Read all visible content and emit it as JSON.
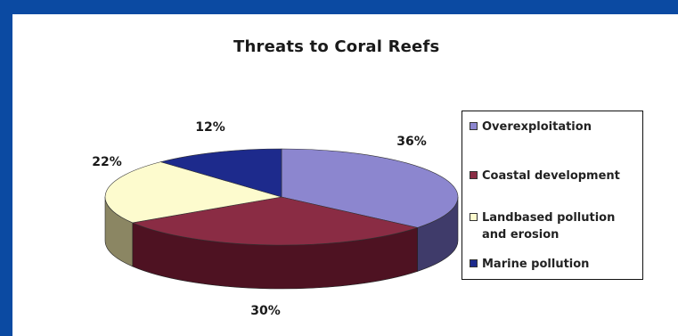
{
  "chart_data": {
    "type": "pie",
    "title": "Threats to Coral Reefs",
    "slices": [
      {
        "label": "Overexploitation",
        "value": 36,
        "display": "36%",
        "color": "#8c86cf",
        "side_color": "#3f3b6a"
      },
      {
        "label": "Coastal development",
        "value": 30,
        "display": "30%",
        "color": "#8a2c44",
        "side_color": "#4e1222"
      },
      {
        "label": "Landbased pollution and erosion",
        "value": 22,
        "display": "22%",
        "color": "#fdfbce",
        "side_color": "#8b8663"
      },
      {
        "label": "Marine pollution",
        "value": 12,
        "display": "12%",
        "color": "#1d2a8c",
        "side_color": "#0f1650"
      }
    ],
    "legend_position": "right",
    "style": "3d"
  }
}
